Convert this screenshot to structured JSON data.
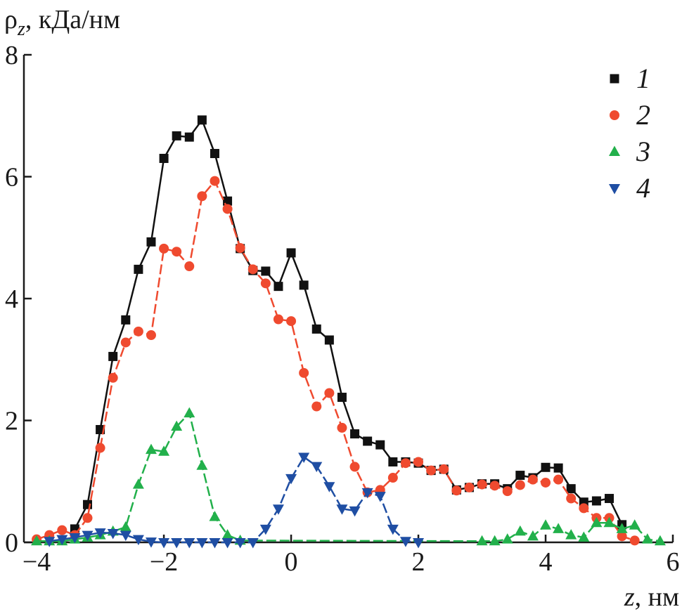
{
  "chart_data": {
    "type": "line",
    "title": "",
    "ylabel_symbol": "ρ",
    "ylabel_subscript": "z",
    "ylabel_unit": ", кДа/нм",
    "xlabel_symbol": "z",
    "xlabel_unit": ", нм",
    "xlim": [
      -4.2,
      6.0
    ],
    "ylim": [
      0,
      8
    ],
    "xticks": [
      -4,
      -2,
      0,
      2,
      4,
      6
    ],
    "xtick_labels": [
      "−4",
      "−2",
      "0",
      "2",
      "4",
      "6"
    ],
    "yticks": [
      0,
      2,
      4,
      6,
      8
    ],
    "ytick_labels": [
      "0",
      "2",
      "4",
      "6",
      "8"
    ],
    "grid": false,
    "legend_position": "top-right",
    "series": [
      {
        "name": "1",
        "color": "#111111",
        "marker": "square",
        "dash": "solid",
        "x": [
          -3.4,
          -3.2,
          -3.0,
          -2.8,
          -2.6,
          -2.4,
          -2.2,
          -2.0,
          -1.8,
          -1.6,
          -1.4,
          -1.2,
          -1.0,
          -0.8,
          -0.6,
          -0.4,
          -0.2,
          0.0,
          0.2,
          0.4,
          0.6,
          0.8,
          1.0,
          1.2,
          1.4,
          1.6,
          1.8,
          2.0,
          2.2,
          2.4,
          2.6,
          2.8,
          3.0,
          3.2,
          3.4,
          3.6,
          3.8,
          4.0,
          4.2,
          4.4,
          4.6,
          4.8,
          5.0,
          5.2
        ],
        "y": [
          0.22,
          0.62,
          1.85,
          3.05,
          3.65,
          4.48,
          4.93,
          6.3,
          6.67,
          6.65,
          6.93,
          6.38,
          5.6,
          4.82,
          4.46,
          4.45,
          4.2,
          4.75,
          4.22,
          3.5,
          3.32,
          2.38,
          1.78,
          1.66,
          1.6,
          1.32,
          1.32,
          1.3,
          1.18,
          1.2,
          0.86,
          0.9,
          0.96,
          0.96,
          0.88,
          1.1,
          1.06,
          1.23,
          1.22,
          0.88,
          0.66,
          0.68,
          0.72,
          0.29
        ]
      },
      {
        "name": "2",
        "color": "#ef4a2f",
        "marker": "circle",
        "dash": "dashed",
        "x": [
          -4.0,
          -3.8,
          -3.6,
          -3.4,
          -3.2,
          -3.0,
          -2.8,
          -2.6,
          -2.4,
          -2.2,
          -2.0,
          -1.8,
          -1.6,
          -1.4,
          -1.2,
          -1.0,
          -0.8,
          -0.6,
          -0.4,
          -0.2,
          0.0,
          0.2,
          0.4,
          0.6,
          0.8,
          1.0,
          1.2,
          1.4,
          1.6,
          1.8,
          2.0,
          2.2,
          2.4,
          2.6,
          2.8,
          3.0,
          3.2,
          3.4,
          3.6,
          3.8,
          4.0,
          4.2,
          4.4,
          4.6,
          4.8,
          5.0,
          5.2,
          5.4
        ],
        "y": [
          0.05,
          0.12,
          0.2,
          0.12,
          0.4,
          1.55,
          2.7,
          3.28,
          3.46,
          3.4,
          4.82,
          4.77,
          4.53,
          5.68,
          5.93,
          5.47,
          4.83,
          4.48,
          4.25,
          3.66,
          3.63,
          2.78,
          2.23,
          2.45,
          1.88,
          1.24,
          0.82,
          0.86,
          1.06,
          1.3,
          1.32,
          1.18,
          1.2,
          0.85,
          0.9,
          0.95,
          0.93,
          0.84,
          0.94,
          1.03,
          0.98,
          1.03,
          0.72,
          0.56,
          0.4,
          0.4,
          0.1,
          0.03
        ]
      },
      {
        "name": "3",
        "color": "#22b04b",
        "marker": "triangle-up",
        "dash": "dashed",
        "x": [
          -4.0,
          -3.8,
          -3.6,
          -3.4,
          -3.2,
          -3.0,
          -2.8,
          -2.6,
          -2.4,
          -2.2,
          -2.0,
          -1.8,
          -1.6,
          -1.4,
          -1.2,
          -1.0,
          -0.8,
          3.0,
          3.2,
          3.4,
          3.6,
          3.8,
          4.0,
          4.2,
          4.4,
          4.6,
          4.8,
          5.0,
          5.2,
          5.4,
          5.6,
          5.8
        ],
        "y": [
          0.02,
          0.02,
          0.02,
          0.05,
          0.08,
          0.12,
          0.18,
          0.25,
          0.95,
          1.52,
          1.49,
          1.9,
          2.12,
          1.26,
          0.42,
          0.12,
          0.03,
          0.02,
          0.02,
          0.05,
          0.18,
          0.1,
          0.28,
          0.22,
          0.12,
          0.08,
          0.32,
          0.32,
          0.22,
          0.28,
          0.05,
          0.02
        ]
      },
      {
        "name": "4",
        "color": "#1f4ea3",
        "marker": "triangle-down",
        "dash": "dashed",
        "x": [
          -3.8,
          -3.6,
          -3.4,
          -3.2,
          -3.0,
          -2.8,
          -2.6,
          -2.4,
          -2.2,
          -2.0,
          -1.8,
          -1.6,
          -1.4,
          -1.2,
          -1.0,
          -0.8,
          -0.6,
          -0.4,
          -0.2,
          0.0,
          0.2,
          0.4,
          0.6,
          0.8,
          1.0,
          1.2,
          1.4,
          1.6,
          1.8,
          2.0
        ],
        "y": [
          0.02,
          0.05,
          0.08,
          0.12,
          0.16,
          0.15,
          0.12,
          0.05,
          0.01,
          0.0,
          0.0,
          0.0,
          0.0,
          0.0,
          0.0,
          0.0,
          0.0,
          0.22,
          0.55,
          1.05,
          1.4,
          1.25,
          0.92,
          0.55,
          0.52,
          0.82,
          0.76,
          0.22,
          0.02,
          0.0
        ]
      }
    ]
  }
}
